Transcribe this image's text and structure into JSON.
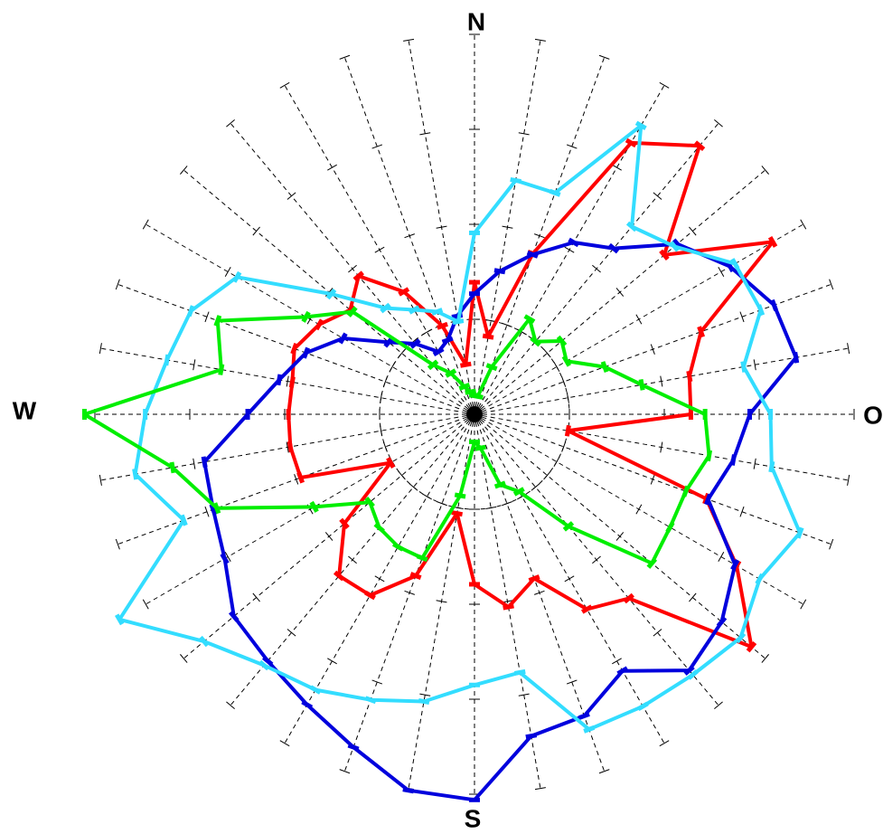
{
  "chart_data": {
    "type": "radar",
    "title": "",
    "directions": {
      "north": "N",
      "east": "O",
      "south": "S",
      "west": "W"
    },
    "spoke_count": 36,
    "angle_step_deg": 10,
    "radial_max": 4.0,
    "tick_step": 1.0,
    "inner_circle_radius": 1.0,
    "grid": true,
    "series": [
      {
        "color": "#ff0000",
        "values": [
          1.39,
          0.83,
          1.8,
          3.3,
          3.69,
          2.61,
          3.63,
          2.54,
          2.3,
          2.28,
          1.0,
          2.6,
          3.19,
          3.81,
          2.53,
          2.37,
          1.84,
          2.06,
          1.79,
          1.06,
          1.81,
          2.2,
          2.22,
          1.79,
          1.02,
          1.95,
          1.97,
          1.96,
          1.95,
          2.02,
          1.89,
          1.71,
          1.9,
          1.49,
          0.99,
          0.53
        ]
      },
      {
        "color": "#0000dd",
        "values": [
          1.27,
          1.53,
          1.79,
          2.09,
          2.28,
          2.79,
          3.11,
          3.36,
          3.44,
          2.9,
          2.77,
          2.62,
          3.17,
          3.4,
          3.52,
          3.12,
          3.38,
          3.44,
          4.06,
          4.02,
          3.73,
          3.53,
          3.39,
          3.31,
          3.04,
          2.93,
          2.89,
          2.39,
          2.09,
          1.89,
          1.6,
          1.18,
          0.97,
          0.76,
          0.83,
          1.05
        ]
      },
      {
        "color": "#33ddff",
        "values": [
          1.91,
          2.5,
          2.48,
          3.51,
          2.58,
          2.75,
          3.17,
          3.21,
          2.88,
          3.12,
          3.18,
          3.65,
          3.47,
          3.66,
          3.58,
          3.55,
          3.53,
          2.76,
          2.85,
          3.07,
          3.2,
          3.35,
          3.45,
          3.72,
          4.32,
          3.26,
          3.63,
          3.47,
          3.29,
          3.18,
          2.89,
          1.97,
          1.46,
          1.27,
          1.15,
          0.99
        ]
      },
      {
        "color": "#00ee00",
        "values": [
          0.2,
          0.19,
          0.53,
          1.16,
          1.0,
          1.2,
          1.12,
          1.46,
          1.79,
          2.43,
          2.51,
          2.37,
          2.38,
          2.44,
          1.54,
          0.94,
          0.79,
          0.36,
          0.29,
          0.87,
          1.61,
          1.61,
          1.56,
          1.44,
          1.95,
          2.89,
          3.23,
          4.11,
          2.71,
          2.88,
          2.05,
          1.68,
          0.68,
          0.5,
          0.31,
          0.24
        ]
      }
    ]
  }
}
